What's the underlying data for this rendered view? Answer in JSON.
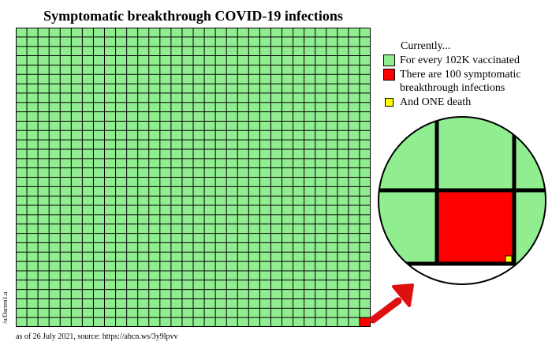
{
  "title": "Symptomatic breakthrough COVID-19 infections",
  "legend": {
    "heading": "Currently...",
    "items": [
      {
        "label": "For every 102K vaccinated",
        "color": "#90ee90",
        "size": "big"
      },
      {
        "label": "There are 100 symptomatic breakthrough infections",
        "color": "#ff0000",
        "size": "big"
      },
      {
        "label": "And ONE death",
        "color": "#ffff00",
        "size": "small"
      }
    ]
  },
  "source": "as of 26 July 2021, source: https://abcn.ws/3y9lpvv",
  "credit": "/u/Darren1.u",
  "colors": {
    "vaccinated": "#90ee90",
    "infection": "#ff0000",
    "death": "#ffff00",
    "arrow": "#dd1111"
  },
  "chart_data": {
    "type": "heatmap",
    "grid": {
      "columns": 32,
      "rows": 32
    },
    "cells": {
      "vaccinated": 1023,
      "infection": 1
    },
    "values": {
      "vaccinated": 102000,
      "symptomatic_infections": 100,
      "deaths": 1
    },
    "title": "Symptomatic breakthrough COVID-19 infections"
  }
}
